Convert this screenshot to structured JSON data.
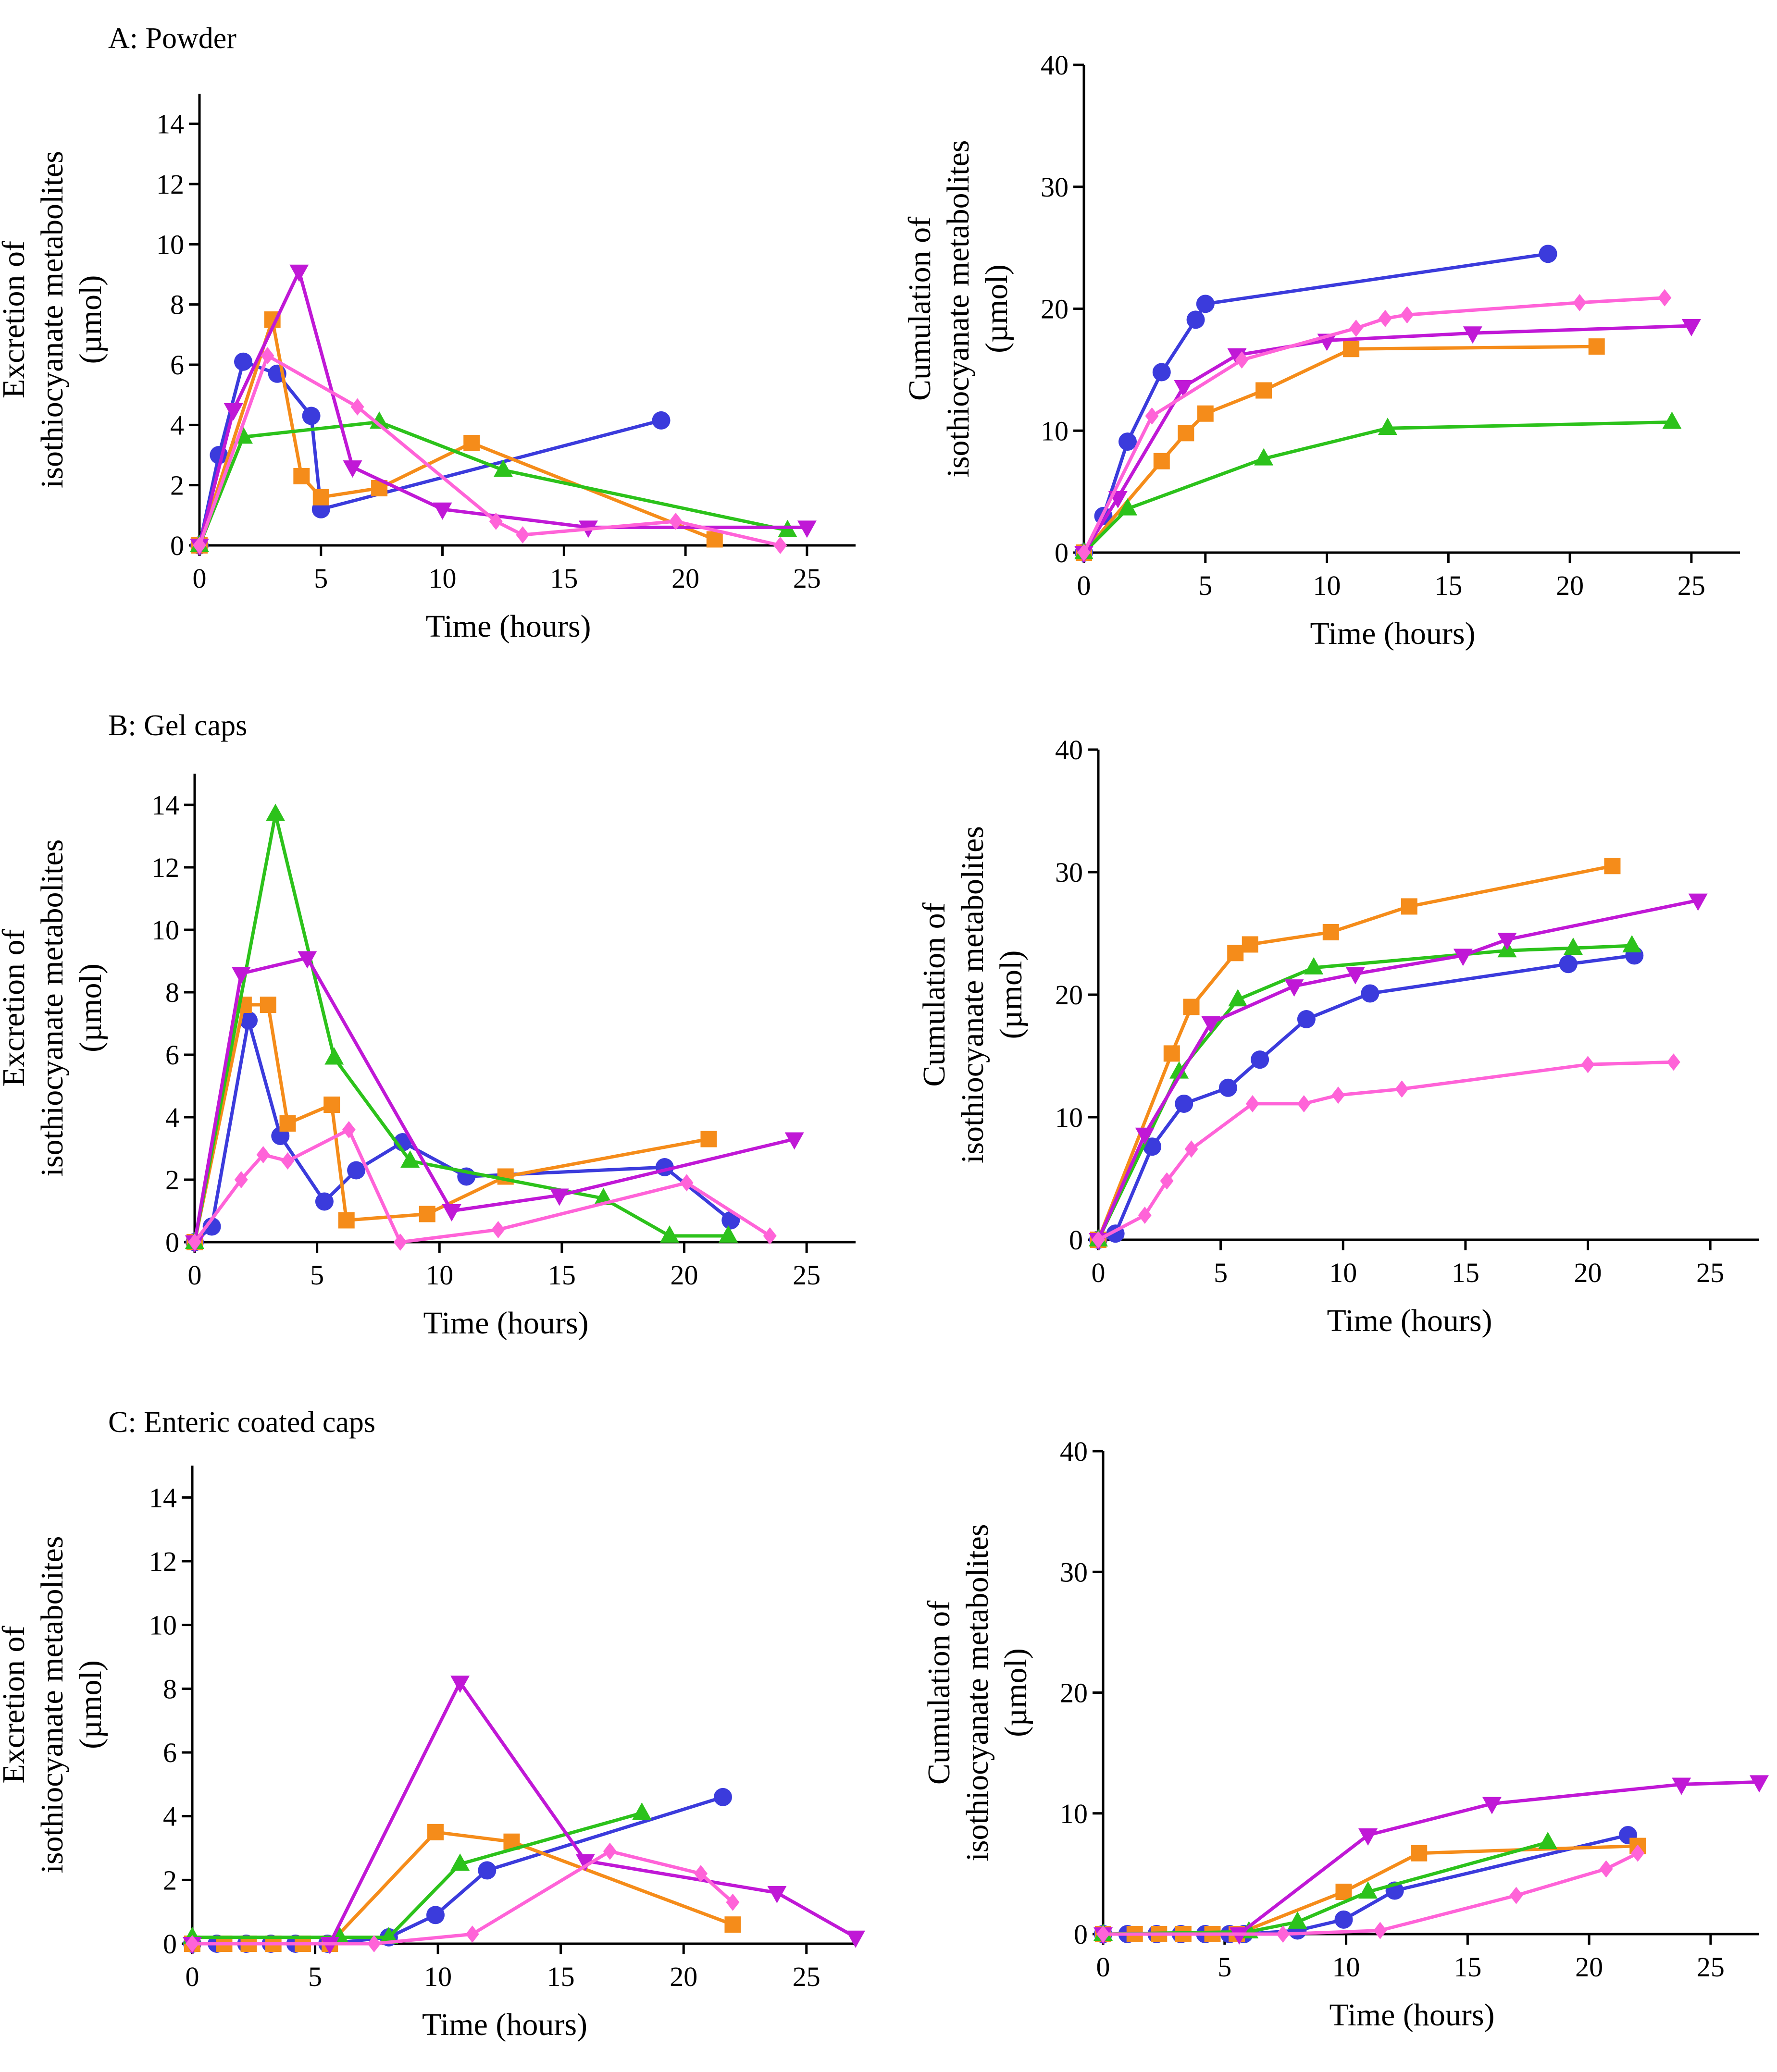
{
  "colors": {
    "s1": "#3b3bdc",
    "s2": "#f58c1a",
    "s3": "#2cc21b",
    "s4": "#c018d6",
    "s5": "#ff63d8",
    "axis": "#000000"
  },
  "chart_data": [
    {
      "id": "A-excretion",
      "type": "line",
      "title": "A: Powder",
      "xlabel": "Time (hours)",
      "ylabel": [
        "Excretion of",
        "isothiocyanate metabolites",
        "(µmol)"
      ],
      "xlim": [
        0,
        27
      ],
      "ylim": [
        0,
        15
      ],
      "xticks": [
        0,
        5,
        10,
        15,
        20,
        25
      ],
      "yticks": [
        0,
        2,
        4,
        6,
        8,
        10,
        12,
        14
      ],
      "series": [
        {
          "name": "s1",
          "marker": "circle",
          "x": [
            0,
            0.8,
            1.8,
            3.2,
            4.6,
            5,
            19
          ],
          "y": [
            0,
            3,
            6.1,
            5.7,
            4.3,
            1.2,
            4.15
          ]
        },
        {
          "name": "s2",
          "marker": "square",
          "x": [
            0,
            3,
            4.2,
            5,
            7.4,
            11.2,
            21.2
          ],
          "y": [
            0,
            7.5,
            2.3,
            1.6,
            1.9,
            3.4,
            0.2
          ]
        },
        {
          "name": "s3",
          "marker": "triangle-up",
          "x": [
            0,
            1.8,
            7.4,
            12.5,
            24.2
          ],
          "y": [
            0,
            3.6,
            4.1,
            2.5,
            0.5
          ]
        },
        {
          "name": "s4",
          "marker": "triangle-down",
          "x": [
            0,
            1.4,
            4.1,
            6.3,
            10,
            16,
            25
          ],
          "y": [
            0,
            4.5,
            9.1,
            2.6,
            1.2,
            0.6,
            0.6
          ]
        },
        {
          "name": "s5",
          "marker": "diamond",
          "x": [
            0,
            2.8,
            6.5,
            12.2,
            13.3,
            19.6,
            23.9
          ],
          "y": [
            0,
            6.3,
            4.6,
            0.8,
            0.35,
            0.8,
            0
          ]
        }
      ]
    },
    {
      "id": "A-cumulation",
      "type": "line",
      "title": "",
      "xlabel": "Time (hours)",
      "ylabel": [
        "Cumulation of",
        "isothiocyanate metabolites",
        "(µmol)"
      ],
      "xlim": [
        0,
        27
      ],
      "ylim": [
        0,
        40
      ],
      "xticks": [
        0,
        5,
        10,
        15,
        20,
        25
      ],
      "yticks": [
        0,
        10,
        20,
        30,
        40
      ],
      "series": [
        {
          "name": "s1",
          "marker": "circle",
          "x": [
            0,
            0.8,
            1.8,
            3.2,
            4.6,
            5,
            19.1
          ],
          "y": [
            0,
            3,
            9.1,
            14.8,
            19.1,
            20.4,
            24.5
          ]
        },
        {
          "name": "s2",
          "marker": "square",
          "x": [
            0,
            3.2,
            4.2,
            5,
            7.4,
            11,
            21.1
          ],
          "y": [
            0,
            7.5,
            9.8,
            11.4,
            13.3,
            16.7,
            16.9
          ]
        },
        {
          "name": "s3",
          "marker": "triangle-up",
          "x": [
            0,
            1.8,
            7.4,
            12.5,
            24.2
          ],
          "y": [
            0,
            3.6,
            7.7,
            10.2,
            10.7
          ]
        },
        {
          "name": "s4",
          "marker": "triangle-down",
          "x": [
            0,
            1.4,
            4.1,
            6.3,
            10,
            16,
            25
          ],
          "y": [
            0,
            4.5,
            13.6,
            16.2,
            17.4,
            18,
            18.6
          ]
        },
        {
          "name": "s5",
          "marker": "diamond",
          "x": [
            0,
            2.8,
            6.5,
            11.2,
            12.4,
            13.3,
            20.4,
            23.9
          ],
          "y": [
            0,
            11.2,
            15.8,
            18.4,
            19.2,
            19.5,
            20.5,
            20.9
          ]
        }
      ]
    },
    {
      "id": "B-excretion",
      "type": "line",
      "title": "B: Gel caps",
      "xlabel": "Time (hours)",
      "ylabel": [
        "Excretion of",
        "isothiocyanate metabolites",
        "(µmol)"
      ],
      "xlim": [
        0,
        27
      ],
      "ylim": [
        0,
        15
      ],
      "xticks": [
        0,
        5,
        10,
        15,
        20,
        25
      ],
      "yticks": [
        0,
        2,
        4,
        6,
        8,
        10,
        12,
        14
      ],
      "series": [
        {
          "name": "s1",
          "marker": "circle",
          "x": [
            0,
            0.7,
            2.2,
            3.5,
            5.3,
            6.6,
            8.5,
            11.1,
            19.2,
            21.9
          ],
          "y": [
            0,
            0.5,
            7.1,
            3.4,
            1.3,
            2.3,
            3.2,
            2.1,
            2.4,
            0.7
          ]
        },
        {
          "name": "s2",
          "marker": "square",
          "x": [
            0,
            2,
            3,
            3.8,
            5.6,
            6.2,
            9.5,
            12.7,
            21
          ],
          "y": [
            0,
            7.6,
            7.6,
            3.8,
            4.4,
            0.7,
            0.9,
            2.1,
            3.3
          ]
        },
        {
          "name": "s3",
          "marker": "triangle-up",
          "x": [
            0,
            3.3,
            5.7,
            8.8,
            16.7,
            19.4,
            21.8
          ],
          "y": [
            0,
            13.7,
            5.9,
            2.6,
            1.4,
            0.2,
            0.2
          ]
        },
        {
          "name": "s4",
          "marker": "triangle-down",
          "x": [
            0,
            1.9,
            4.6,
            10.5,
            14.9,
            24.5
          ],
          "y": [
            0,
            8.6,
            9.1,
            1,
            1.5,
            3.3
          ]
        },
        {
          "name": "s5",
          "marker": "diamond",
          "x": [
            0,
            1.9,
            2.8,
            3.8,
            6.3,
            8.4,
            12.4,
            20.1,
            23.5
          ],
          "y": [
            0,
            2,
            2.8,
            2.6,
            3.6,
            0,
            0.4,
            1.9,
            0.2
          ]
        }
      ]
    },
    {
      "id": "B-cumulation",
      "type": "line",
      "title": "",
      "xlabel": "Time (hours)",
      "ylabel": [
        "Cumulation of",
        "isothiocyanate metabolites",
        "(µmol)"
      ],
      "xlim": [
        0,
        27
      ],
      "ylim": [
        0,
        40
      ],
      "xticks": [
        0,
        5,
        10,
        15,
        20,
        25
      ],
      "yticks": [
        0,
        10,
        20,
        30,
        40
      ],
      "series": [
        {
          "name": "s1",
          "marker": "circle",
          "x": [
            0,
            0.7,
            2.2,
            3.5,
            5.3,
            6.6,
            8.5,
            11.1,
            19.2,
            21.9
          ],
          "y": [
            0,
            0.5,
            7.6,
            11.1,
            12.4,
            14.7,
            18,
            20.1,
            22.5,
            23.2
          ]
        },
        {
          "name": "s2",
          "marker": "square",
          "x": [
            0,
            3,
            3.8,
            5.6,
            6.2,
            9.5,
            12.7,
            21
          ],
          "y": [
            0,
            15.2,
            19,
            23.4,
            24.1,
            25.1,
            27.2,
            30.5
          ]
        },
        {
          "name": "s3",
          "marker": "triangle-up",
          "x": [
            0,
            3.3,
            5.7,
            8.8,
            16.7,
            19.4,
            21.8
          ],
          "y": [
            0,
            13.7,
            19.6,
            22.2,
            23.6,
            23.8,
            24
          ]
        },
        {
          "name": "s4",
          "marker": "triangle-down",
          "x": [
            0,
            1.9,
            4.6,
            8,
            10.5,
            14.9,
            16.7,
            24.5
          ],
          "y": [
            0,
            8.6,
            17.7,
            20.7,
            21.7,
            23.2,
            24.5,
            27.7
          ]
        },
        {
          "name": "s5",
          "marker": "diamond",
          "x": [
            0,
            1.9,
            2.8,
            3.8,
            6.3,
            8.4,
            9.8,
            12.4,
            20,
            23.5
          ],
          "y": [
            0,
            2,
            4.8,
            7.4,
            11.1,
            11.1,
            11.8,
            12.3,
            14.3,
            14.5
          ]
        }
      ]
    },
    {
      "id": "C-excretion",
      "type": "line",
      "title": "C: Enteric coated caps",
      "xlabel": "Time (hours)",
      "ylabel": [
        "Excretion of",
        "isothiocyanate metabolites",
        "(µmol)"
      ],
      "xlim": [
        0,
        27
      ],
      "ylim": [
        0,
        15
      ],
      "xticks": [
        0,
        5,
        10,
        15,
        20,
        25
      ],
      "yticks": [
        0,
        2,
        4,
        6,
        8,
        10,
        12,
        14
      ],
      "series": [
        {
          "name": "s1",
          "marker": "circle",
          "x": [
            0,
            1,
            2.2,
            3.2,
            4.2,
            5.5,
            8,
            9.9,
            12,
            21.6
          ],
          "y": [
            0,
            0,
            0,
            0,
            0,
            0,
            0.2,
            0.9,
            2.3,
            4.6
          ]
        },
        {
          "name": "s2",
          "marker": "square",
          "x": [
            0,
            1.3,
            2.3,
            3.3,
            4.5,
            5.6,
            9.9,
            13,
            22
          ],
          "y": [
            0,
            0,
            0,
            0,
            0,
            0,
            3.5,
            3.2,
            0.6
          ]
        },
        {
          "name": "s3",
          "marker": "triangle-up",
          "x": [
            0,
            6,
            8,
            10.9,
            18.3
          ],
          "y": [
            0.2,
            0.2,
            0.2,
            2.5,
            4.1
          ]
        },
        {
          "name": "s4",
          "marker": "triangle-down",
          "x": [
            0,
            5.6,
            10.9,
            16,
            23.8,
            27
          ],
          "y": [
            0,
            0,
            8.2,
            2.6,
            1.6,
            0.2
          ]
        },
        {
          "name": "s5",
          "marker": "diamond",
          "x": [
            0,
            7.4,
            11.4,
            17,
            20.7,
            22
          ],
          "y": [
            0,
            0,
            0.3,
            2.9,
            2.2,
            1.3
          ]
        }
      ]
    },
    {
      "id": "C-cumulation",
      "type": "line",
      "title": "",
      "xlabel": "Time (hours)",
      "ylabel": [
        "Cumulation of",
        "isothiocyanate metabolites",
        "(µmol)"
      ],
      "xlim": [
        0,
        27
      ],
      "ylim": [
        0,
        40
      ],
      "xticks": [
        0,
        5,
        10,
        15,
        20,
        25
      ],
      "yticks": [
        0,
        10,
        20,
        30,
        40
      ],
      "series": [
        {
          "name": "s1",
          "marker": "circle",
          "x": [
            0,
            1,
            2.2,
            3.2,
            4.2,
            5.2,
            5.8,
            8,
            9.9,
            12,
            21.6
          ],
          "y": [
            0,
            0,
            0,
            0,
            0,
            0,
            0,
            0.3,
            1.2,
            3.6,
            8.2
          ]
        },
        {
          "name": "s2",
          "marker": "square",
          "x": [
            0,
            1.3,
            2.3,
            3.3,
            4.5,
            5.5,
            9.9,
            13,
            22
          ],
          "y": [
            0,
            0,
            0,
            0,
            0,
            0,
            3.5,
            6.7,
            7.3
          ]
        },
        {
          "name": "s3",
          "marker": "triangle-up",
          "x": [
            0,
            6,
            8,
            10.9,
            18.3
          ],
          "y": [
            0,
            0.2,
            1,
            3.5,
            7.6
          ]
        },
        {
          "name": "s4",
          "marker": "triangle-down",
          "x": [
            0,
            5.6,
            10.9,
            16,
            23.8,
            27
          ],
          "y": [
            0,
            0,
            8.2,
            10.8,
            12.4,
            12.6
          ]
        },
        {
          "name": "s5",
          "marker": "diamond",
          "x": [
            0,
            7.4,
            11.4,
            17,
            20.7,
            22
          ],
          "y": [
            0,
            0,
            0.3,
            3.2,
            5.4,
            6.7
          ]
        }
      ]
    }
  ]
}
